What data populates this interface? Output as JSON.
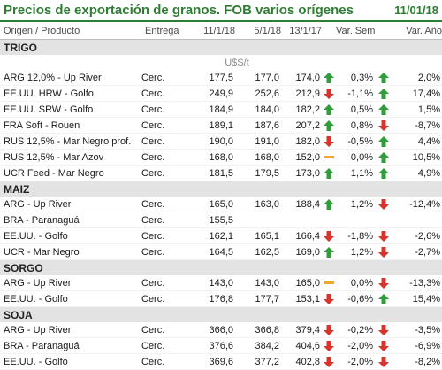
{
  "header": {
    "title": "Precios de exportación de granos. FOB varios orígenes",
    "date": "11/01/18"
  },
  "columns": [
    "Origen / Producto",
    "Entrega",
    "11/1/18",
    "5/1/18",
    "13/1/17",
    "Var. Sem.",
    "Var. Año"
  ],
  "units_label": "U$S/t",
  "colors": {
    "accent": "#2e7d32",
    "up": "#2e9d3a",
    "down": "#d9342b",
    "flat": "#f5a623"
  },
  "sections": [
    {
      "name": "TRIGO",
      "show_units": true,
      "rows": [
        {
          "product": "ARG 12,0% - Up River",
          "entrega": "Cerc.",
          "c1": "177,5",
          "c2": "177,0",
          "c3": "174,0",
          "i1": "up",
          "vs": "0,3%",
          "i2": "up",
          "va": "2,0%"
        },
        {
          "product": "EE.UU. HRW - Golfo",
          "entrega": "Cerc.",
          "c1": "249,9",
          "c2": "252,6",
          "c3": "212,9",
          "i1": "down",
          "vs": "-1,1%",
          "i2": "up",
          "va": "17,4%"
        },
        {
          "product": "EE.UU. SRW - Golfo",
          "entrega": "Cerc.",
          "c1": "184,9",
          "c2": "184,0",
          "c3": "182,2",
          "i1": "up",
          "vs": "0,5%",
          "i2": "up",
          "va": "1,5%"
        },
        {
          "product": "FRA Soft - Rouen",
          "entrega": "Cerc.",
          "c1": "189,1",
          "c2": "187,6",
          "c3": "207,2",
          "i1": "up",
          "vs": "0,8%",
          "i2": "down",
          "va": "-8,7%"
        },
        {
          "product": "RUS 12,5% - Mar Negro prof.",
          "entrega": "Cerc.",
          "c1": "190,0",
          "c2": "191,0",
          "c3": "182,0",
          "i1": "down",
          "vs": "-0,5%",
          "i2": "up",
          "va": "4,4%"
        },
        {
          "product": "RUS 12,5% - Mar Azov",
          "entrega": "Cerc.",
          "c1": "168,0",
          "c2": "168,0",
          "c3": "152,0",
          "i1": "flat",
          "vs": "0,0%",
          "i2": "up",
          "va": "10,5%"
        },
        {
          "product": "UCR Feed - Mar Negro",
          "entrega": "Cerc.",
          "c1": "181,5",
          "c2": "179,5",
          "c3": "173,0",
          "i1": "up",
          "vs": "1,1%",
          "i2": "up",
          "va": "4,9%"
        }
      ]
    },
    {
      "name": "MAIZ",
      "show_units": false,
      "rows": [
        {
          "product": "ARG - Up River",
          "entrega": "Cerc.",
          "c1": "165,0",
          "c2": "163,0",
          "c3": "188,4",
          "i1": "up",
          "vs": "1,2%",
          "i2": "down",
          "va": "-12,4%"
        },
        {
          "product": "BRA - Paranaguá",
          "entrega": "Cerc.",
          "c1": "155,5",
          "c2": "",
          "c3": "",
          "i1": "",
          "vs": "",
          "i2": "",
          "va": ""
        },
        {
          "product": "EE.UU. - Golfo",
          "entrega": "Cerc.",
          "c1": "162,1",
          "c2": "165,1",
          "c3": "166,4",
          "i1": "down",
          "vs": "-1,8%",
          "i2": "down",
          "va": "-2,6%"
        },
        {
          "product": "UCR - Mar Negro",
          "entrega": "Cerc.",
          "c1": "164,5",
          "c2": "162,5",
          "c3": "169,0",
          "i1": "up",
          "vs": "1,2%",
          "i2": "down",
          "va": "-2,7%"
        }
      ]
    },
    {
      "name": "SORGO",
      "show_units": false,
      "rows": [
        {
          "product": "ARG - Up River",
          "entrega": "Cerc.",
          "c1": "143,0",
          "c2": "143,0",
          "c3": "165,0",
          "i1": "flat",
          "vs": "0,0%",
          "i2": "down",
          "va": "-13,3%"
        },
        {
          "product": "EE.UU. - Golfo",
          "entrega": "Cerc.",
          "c1": "176,8",
          "c2": "177,7",
          "c3": "153,1",
          "i1": "down",
          "vs": "-0,6%",
          "i2": "up",
          "va": "15,4%"
        }
      ]
    },
    {
      "name": "SOJA",
      "show_units": false,
      "rows": [
        {
          "product": "ARG - Up River",
          "entrega": "Cerc.",
          "c1": "366,0",
          "c2": "366,8",
          "c3": "379,4",
          "i1": "down",
          "vs": "-0,2%",
          "i2": "down",
          "va": "-3,5%"
        },
        {
          "product": "BRA - Paranaguá",
          "entrega": "Cerc.",
          "c1": "376,6",
          "c2": "384,2",
          "c3": "404,6",
          "i1": "down",
          "vs": "-2,0%",
          "i2": "down",
          "va": "-6,9%"
        },
        {
          "product": "EE.UU. - Golfo",
          "entrega": "Cerc.",
          "c1": "369,6",
          "c2": "377,2",
          "c3": "402,8",
          "i1": "down",
          "vs": "-2,0%",
          "i2": "down",
          "va": "-8,2%"
        }
      ]
    }
  ]
}
